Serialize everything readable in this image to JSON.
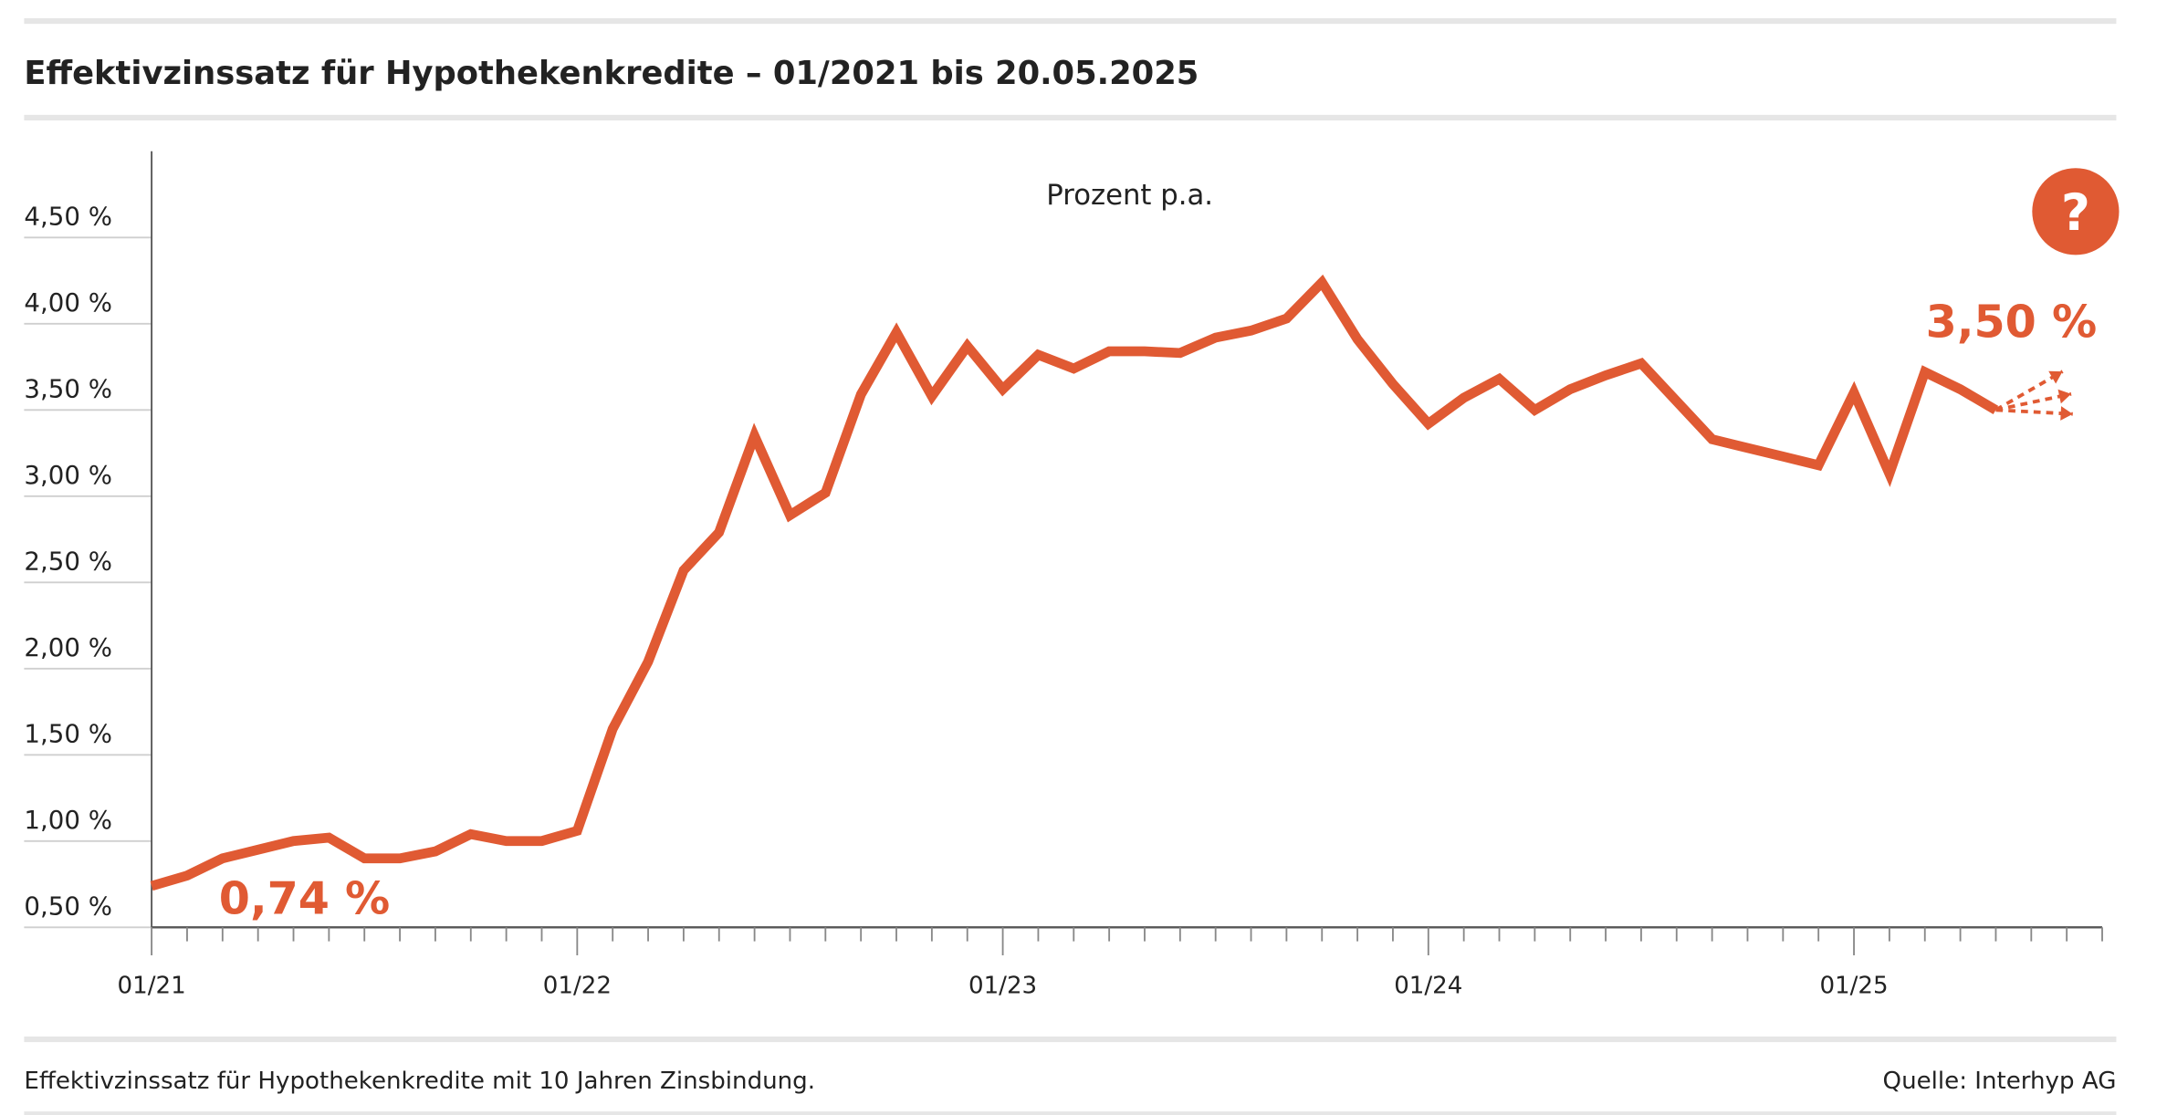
{
  "chart_data": {
    "type": "line",
    "title": "Effektivzinssatz für Hypothekenkredite – 01/2021 bis 20.05.2025",
    "subtitle": "Prozent p.a.",
    "note": "Effektivzinssatz für Hypothekenkredite mit 10 Jahren Zinsbindung.",
    "source": "Quelle: Interhyp AG",
    "help_label": "?",
    "categories": [
      "01/21",
      null,
      null,
      null,
      null,
      null,
      null,
      null,
      null,
      null,
      null,
      null,
      "01/22",
      null,
      null,
      null,
      null,
      null,
      null,
      null,
      null,
      null,
      null,
      null,
      "01/23",
      null,
      null,
      null,
      null,
      null,
      null,
      null,
      null,
      null,
      null,
      null,
      "01/24",
      null,
      null,
      null,
      null,
      null,
      null,
      null,
      null,
      null,
      null,
      null,
      "01/25",
      null,
      null,
      null,
      null,
      null,
      null,
      null
    ],
    "series": [
      {
        "name": "Effektivzinssatz",
        "color": "#e05a33",
        "values": [
          0.74,
          0.8,
          0.9,
          0.95,
          1.0,
          1.02,
          0.9,
          0.9,
          0.94,
          1.04,
          1.0,
          1.0,
          1.06,
          1.65,
          2.04,
          2.57,
          2.79,
          3.35,
          2.89,
          3.02,
          3.59,
          3.95,
          3.58,
          3.87,
          3.62,
          3.82,
          3.74,
          3.84,
          3.84,
          3.83,
          3.92,
          3.96,
          4.03,
          4.24,
          3.91,
          3.65,
          3.42,
          3.57,
          3.68,
          3.5,
          3.62,
          3.7,
          3.77,
          3.55,
          3.33,
          3.28,
          3.23,
          3.18,
          3.6,
          3.13,
          3.72,
          3.62,
          3.5,
          null,
          null,
          null
        ],
        "value_labels": [
          "0,74 %",
          null,
          null,
          null,
          null,
          null,
          null,
          null,
          null,
          null,
          null,
          null,
          null,
          null,
          null,
          null,
          null,
          null,
          null,
          null,
          null,
          null,
          null,
          null,
          null,
          null,
          null,
          null,
          null,
          null,
          null,
          null,
          null,
          null,
          null,
          null,
          null,
          null,
          null,
          null,
          null,
          null,
          null,
          null,
          null,
          null,
          null,
          null,
          null,
          null,
          null,
          null,
          "3,50 %",
          null,
          null,
          null
        ]
      }
    ],
    "ylim": [
      0.5,
      5.0
    ],
    "yticks": [
      {
        "value": 0.5,
        "label": "0,50 %"
      },
      {
        "value": 1.0,
        "label": "1,00 %"
      },
      {
        "value": 1.5,
        "label": "1,50 %"
      },
      {
        "value": 2.0,
        "label": "2,00 %"
      },
      {
        "value": 2.5,
        "label": "2,50 %"
      },
      {
        "value": 3.0,
        "label": "3,00 %"
      },
      {
        "value": 3.5,
        "label": "3,50 %"
      },
      {
        "value": 4.0,
        "label": "4,00 %"
      },
      {
        "value": 4.5,
        "label": "4,50 %"
      }
    ]
  }
}
